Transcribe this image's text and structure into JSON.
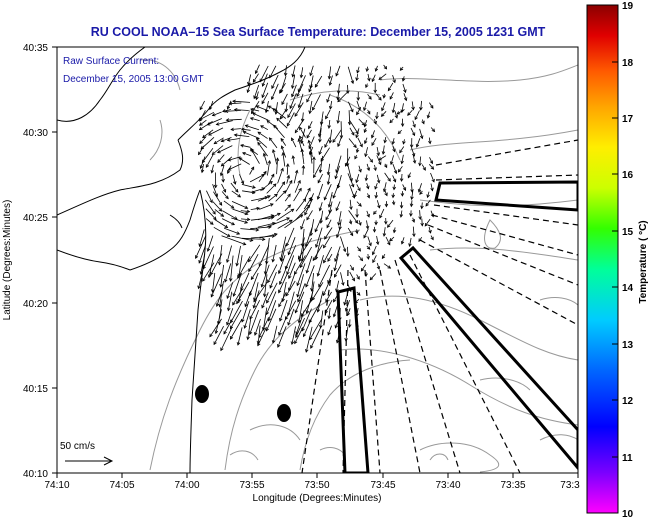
{
  "title": "RU COOL   NOAA–15  Sea Surface Temperature:  December 15, 2005 1231 GMT",
  "annotation": {
    "line1": "Raw Surface Current:",
    "line2": "December 15, 2005 13:00 GMT"
  },
  "scale": {
    "label": "50 cm/s"
  },
  "x_axis": {
    "label": "Longitude (Degrees:Minutes)",
    "ticks": [
      "74:10",
      "74:05",
      "74:00",
      "73:55",
      "73:50",
      "73:45",
      "73:40",
      "73:35",
      "73:3"
    ]
  },
  "y_axis": {
    "label": "Latitude (Degrees:Minutes)",
    "ticks": [
      "40:35",
      "40:30",
      "40:25",
      "40:20",
      "40:15",
      "40:10"
    ]
  },
  "colorbar": {
    "label": "Temperature ( °C)",
    "ticks": [
      "19",
      "18",
      "17",
      "16",
      "15",
      "14",
      "13",
      "12",
      "11",
      "10"
    ],
    "colors": [
      "#ff00ff",
      "#7a00ff",
      "#0000ff",
      "#0066ff",
      "#00ccff",
      "#00ff99",
      "#33ff00",
      "#ccff00",
      "#ffee00",
      "#ffa500",
      "#ff5a00",
      "#e00000",
      "#8b0000"
    ]
  },
  "colors": {
    "title": "#1a1aa8",
    "land": "#000000",
    "contour": "#999999"
  }
}
